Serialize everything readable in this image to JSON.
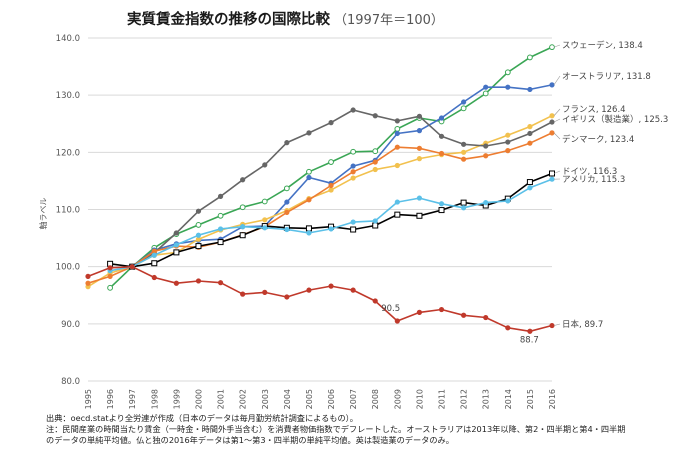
{
  "chart_data": {
    "type": "line",
    "title": "実質賃金指数の推移の国際比較",
    "subtitle": "（1997年＝100）",
    "ylabel": "軸ラベル",
    "xlabel": "",
    "x": [
      "1995",
      "1996",
      "1997",
      "1998",
      "1999",
      "2000",
      "2001",
      "2002",
      "2003",
      "2004",
      "2005",
      "2006",
      "2007",
      "2008",
      "2009",
      "2010",
      "2011",
      "2012",
      "2013",
      "2014",
      "2015",
      "2016"
    ],
    "ylim": [
      80,
      140
    ],
    "yticks": [
      "80.0",
      "90.0",
      "100.0",
      "110.0",
      "120.0",
      "130.0",
      "140.0"
    ],
    "grid": "horizontal",
    "series": [
      {
        "name": "スウェーデン",
        "color": "#3aa655",
        "marker": "circle-open",
        "end_label": "スウェーデン, 138.4",
        "values": [
          null,
          96.3,
          100,
          103.3,
          105.7,
          107.3,
          108.9,
          110.4,
          111.4,
          113.7,
          116.6,
          118.3,
          120.1,
          120.2,
          124.1,
          126.0,
          125.4,
          127.7,
          130.3,
          134.0,
          136.6,
          138.4
        ]
      },
      {
        "name": "オーストラリア",
        "color": "#4472c4",
        "marker": "circle",
        "end_label": "オーストラリア, 131.8",
        "values": [
          null,
          null,
          100,
          102.9,
          104.0,
          104.6,
          104.8,
          107.0,
          107.1,
          111.3,
          115.6,
          114.6,
          117.6,
          118.6,
          123.3,
          123.8,
          126.0,
          128.8,
          131.4,
          131.4,
          131.0,
          131.8
        ]
      },
      {
        "name": "フランス",
        "color": "#f2c14e",
        "marker": "circle",
        "end_label": "フランス, 126.4",
        "values": [
          96.5,
          98.9,
          100,
          102.0,
          102.5,
          104.8,
          106.4,
          107.4,
          108.2,
          109.8,
          111.9,
          113.4,
          115.5,
          117.0,
          117.7,
          118.9,
          119.6,
          120.0,
          121.6,
          123.0,
          124.5,
          126.4
        ]
      },
      {
        "name": "イギリス（製造業）",
        "color": "#666666",
        "marker": "circle",
        "end_label": "イギリス（製造業）, 125.3",
        "values": [
          null,
          null,
          100,
          102.4,
          105.9,
          109.7,
          112.3,
          115.2,
          117.8,
          121.7,
          123.4,
          125.2,
          127.4,
          126.4,
          125.5,
          126.3,
          122.8,
          121.4,
          121.1,
          121.8,
          123.3,
          125.3
        ]
      },
      {
        "name": "デンマーク",
        "color": "#ed7d31",
        "marker": "circle",
        "end_label": "デンマーク, 123.4",
        "values": [
          97.1,
          98.3,
          100,
          102.7,
          103.6,
          103.4,
          104.3,
          105.6,
          107.0,
          109.5,
          111.7,
          114.2,
          116.6,
          118.3,
          120.9,
          120.7,
          119.8,
          118.8,
          119.4,
          120.3,
          121.6,
          123.4
        ]
      },
      {
        "name": "ドイツ",
        "color": "#000000",
        "marker": "square-open",
        "end_label": "ドイツ, 116.3",
        "values": [
          null,
          100.5,
          100,
          100.6,
          102.5,
          103.6,
          104.3,
          105.5,
          107.1,
          106.8,
          106.7,
          107.0,
          106.5,
          107.2,
          109.1,
          108.9,
          109.9,
          111.2,
          110.7,
          111.9,
          114.8,
          116.3
        ]
      },
      {
        "name": "アメリカ",
        "color": "#5bc0e8",
        "marker": "circle",
        "end_label": "アメリカ, 115.3",
        "values": [
          null,
          99.3,
          100,
          102.0,
          103.8,
          105.5,
          106.6,
          107.0,
          106.8,
          106.5,
          105.9,
          106.6,
          107.8,
          108.0,
          111.3,
          112.0,
          111.0,
          110.3,
          111.2,
          111.5,
          113.8,
          115.3
        ]
      },
      {
        "name": "日本",
        "color": "#c0392b",
        "marker": "circle",
        "end_label": "日本, 89.7",
        "values": [
          98.3,
          99.8,
          100,
          98.1,
          97.1,
          97.5,
          97.2,
          95.2,
          95.5,
          94.7,
          95.9,
          96.6,
          95.9,
          94.0,
          90.5,
          92.0,
          92.5,
          91.5,
          91.1,
          89.3,
          88.7,
          89.7
        ]
      }
    ],
    "annotations": [
      "90.5",
      "88.7"
    ]
  },
  "footer": {
    "line1": "出典：oecd.statより全労連が作成（日本のデータは毎月勤労統計調査によるもの）。",
    "line2": "注：民間産業の時間当たり賃金（一時金・時間外手当含む）を消費者物価指数でデフレートした。オーストラリアは2013年以降、第2・四半期と第4・四半期",
    "line3": "のデータの単純平均値。仏と独の2016年データは第1〜第3・四半期の単純平均値。英は製造業のデータのみ。"
  }
}
